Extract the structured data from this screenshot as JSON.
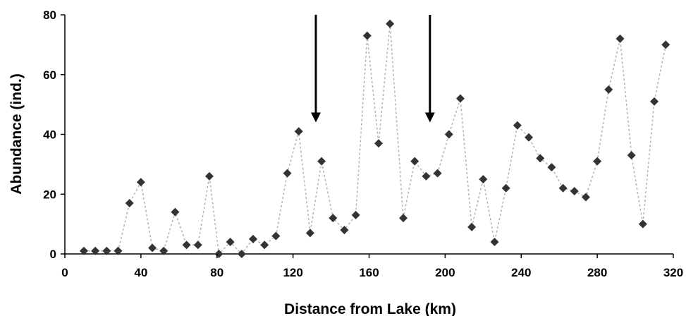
{
  "chart_data": {
    "type": "scatter",
    "title": "",
    "xlabel": "Distance from Lake (km)",
    "ylabel": "Abundance (ind.)",
    "xlim": [
      0,
      320
    ],
    "ylim": [
      0,
      80
    ],
    "xticks": [
      0,
      40,
      80,
      120,
      160,
      200,
      240,
      280,
      320
    ],
    "yticks": [
      0,
      20,
      40,
      60,
      80
    ],
    "grid": false,
    "legend": "none",
    "line_style": "dotted",
    "colors": {
      "marker": "#333333",
      "line": "#b3b3b3",
      "arrow": "#000000"
    },
    "arrows": [
      {
        "x": 132,
        "y_from": 80,
        "y_to": 44
      },
      {
        "x": 192,
        "y_from": 80,
        "y_to": 44
      }
    ],
    "series": [
      {
        "marker": "diamond",
        "points": [
          {
            "x": 10,
            "y": 1
          },
          {
            "x": 16,
            "y": 1
          },
          {
            "x": 22,
            "y": 1
          },
          {
            "x": 28,
            "y": 1
          },
          {
            "x": 34,
            "y": 17
          },
          {
            "x": 40,
            "y": 24
          },
          {
            "x": 46,
            "y": 2
          },
          {
            "x": 52,
            "y": 1
          },
          {
            "x": 58,
            "y": 14
          },
          {
            "x": 64,
            "y": 3
          },
          {
            "x": 70,
            "y": 3
          },
          {
            "x": 76,
            "y": 26
          },
          {
            "x": 81,
            "y": 0
          },
          {
            "x": 87,
            "y": 4
          },
          {
            "x": 93,
            "y": 0
          },
          {
            "x": 99,
            "y": 5
          },
          {
            "x": 105,
            "y": 3
          },
          {
            "x": 111,
            "y": 6
          },
          {
            "x": 117,
            "y": 27
          },
          {
            "x": 123,
            "y": 41
          },
          {
            "x": 129,
            "y": 7
          },
          {
            "x": 135,
            "y": 31
          },
          {
            "x": 141,
            "y": 12
          },
          {
            "x": 147,
            "y": 8
          },
          {
            "x": 153,
            "y": 13
          },
          {
            "x": 159,
            "y": 73
          },
          {
            "x": 165,
            "y": 37
          },
          {
            "x": 171,
            "y": 77
          },
          {
            "x": 178,
            "y": 12
          },
          {
            "x": 184,
            "y": 31
          },
          {
            "x": 190,
            "y": 26
          },
          {
            "x": 196,
            "y": 27
          },
          {
            "x": 202,
            "y": 40
          },
          {
            "x": 208,
            "y": 52
          },
          {
            "x": 214,
            "y": 9
          },
          {
            "x": 220,
            "y": 25
          },
          {
            "x": 226,
            "y": 4
          },
          {
            "x": 232,
            "y": 22
          },
          {
            "x": 238,
            "y": 43
          },
          {
            "x": 244,
            "y": 39
          },
          {
            "x": 250,
            "y": 32
          },
          {
            "x": 256,
            "y": 29
          },
          {
            "x": 262,
            "y": 22
          },
          {
            "x": 268,
            "y": 21
          },
          {
            "x": 274,
            "y": 19
          },
          {
            "x": 280,
            "y": 31
          },
          {
            "x": 286,
            "y": 55
          },
          {
            "x": 292,
            "y": 72
          },
          {
            "x": 298,
            "y": 33
          },
          {
            "x": 304,
            "y": 10
          },
          {
            "x": 310,
            "y": 51
          },
          {
            "x": 316,
            "y": 70
          }
        ]
      }
    ]
  }
}
